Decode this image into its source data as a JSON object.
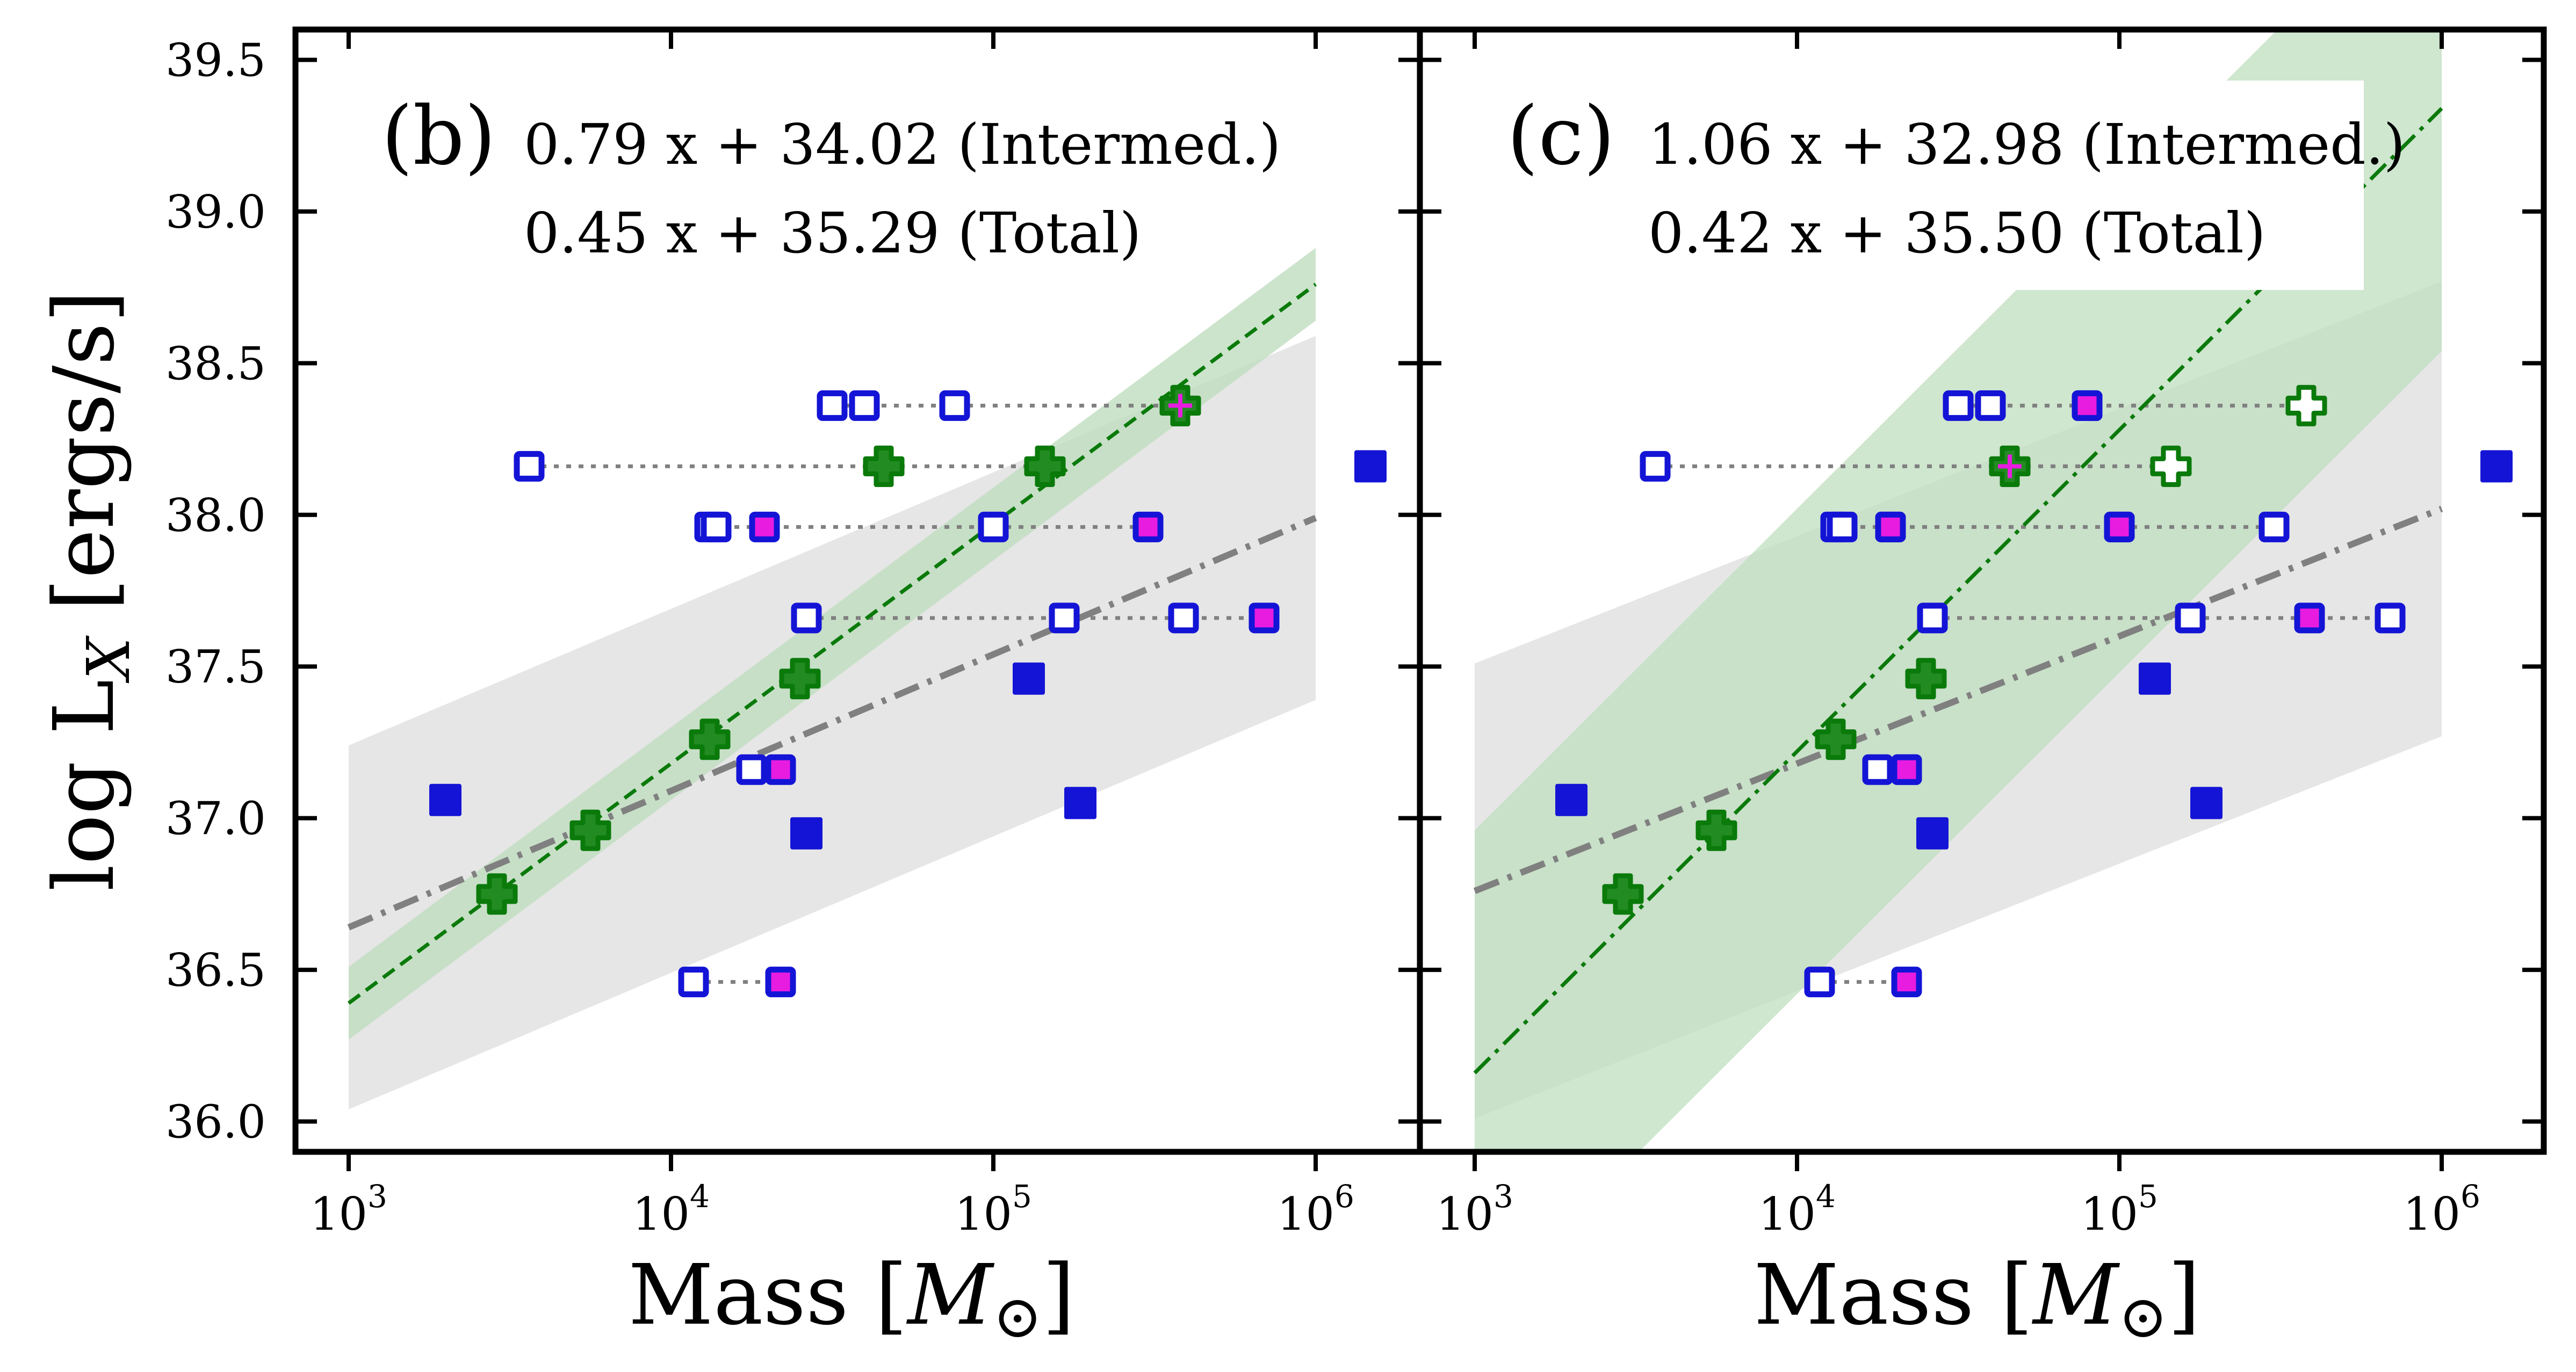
{
  "figure": {
    "ylabel": "log L",
    "ylabel_sub": "X",
    "ylabel_unit": " [ergs/s]",
    "xlabel": "Mass [",
    "xlabel_sym": "M",
    "xlabel_sub": "⊙",
    "xlabel_end": "]",
    "y_ticks": [
      "36.0",
      "36.5",
      "37.0",
      "37.5",
      "38.0",
      "38.5",
      "39.0",
      "39.5"
    ],
    "x_ticks": [
      {
        "base": "10",
        "exp": "3"
      },
      {
        "base": "10",
        "exp": "4"
      },
      {
        "base": "10",
        "exp": "5"
      },
      {
        "base": "10",
        "exp": "6"
      }
    ]
  },
  "colors": {
    "blue": "#1414d6",
    "green": "#0a7a0a",
    "magenta": "#e81ce0",
    "gray_line": "#808080",
    "green_band": "#bfddbf",
    "gray_band": "#e6e6e6"
  },
  "chart_data": [
    {
      "type": "scatter",
      "panel": "(b)",
      "x_scale": "log10",
      "x_label": "Mass [M_sun]",
      "y_label": "log L_X [ergs/s]",
      "xlim_log": [
        2.84,
        6.3
      ],
      "ylim": [
        35.9,
        39.6
      ],
      "fit_intermediate": {
        "label": "0.79 x + 34.02 (Intermed.)",
        "slope": 0.79,
        "intercept": 34.02,
        "style": "dashed",
        "band_halfwidth": 0.12
      },
      "fit_total": {
        "label": "0.45 x + 35.29 (Total)",
        "slope": 0.45,
        "intercept": 35.29,
        "style": "dashdot",
        "band_halfwidth": 0.6
      },
      "fit_xrange_log": [
        3,
        6
      ],
      "intermediate_points": [
        [
          3.46,
          36.75
        ],
        [
          3.75,
          36.96
        ],
        [
          4.12,
          37.26
        ],
        [
          4.4,
          37.46
        ],
        [
          4.66,
          38.16
        ],
        [
          5.16,
          38.16
        ],
        [
          5.58,
          38.36
        ]
      ],
      "blue_filled": [
        [
          3.3,
          37.06
        ],
        [
          4.42,
          36.95
        ],
        [
          5.11,
          37.46
        ],
        [
          5.27,
          37.05
        ],
        [
          6.17,
          38.16
        ]
      ],
      "rows": [
        {
          "y": 38.36,
          "open": [
            4.5,
            4.6,
            4.88
          ],
          "plus": [
            5.58
          ]
        },
        {
          "y": 38.16,
          "open": [
            3.56
          ],
          "plus": [
            4.66,
            5.16
          ]
        },
        {
          "y": 37.96,
          "open": [
            4.12,
            4.14,
            5.0
          ],
          "magenta": [
            4.29,
            5.48
          ]
        },
        {
          "y": 37.66,
          "open": [
            4.42,
            5.22,
            5.59
          ],
          "magenta": [
            5.84
          ]
        },
        {
          "y": 37.16,
          "open": [
            4.25
          ],
          "magenta": [
            4.34
          ]
        },
        {
          "y": 36.46,
          "open": [
            4.07
          ],
          "magenta": [
            4.34
          ]
        }
      ]
    },
    {
      "type": "scatter",
      "panel": "(c)",
      "x_scale": "log10",
      "x_label": "Mass [M_sun]",
      "y_label": "log L_X [ergs/s]",
      "xlim_log": [
        2.84,
        6.3
      ],
      "ylim": [
        35.9,
        39.6
      ],
      "fit_intermediate": {
        "label": "1.06 x + 32.98 (Intermed.)",
        "slope": 1.06,
        "intercept": 32.98,
        "style": "dashdot",
        "band_halfwidth": 0.8
      },
      "fit_total": {
        "label": "0.42 x + 35.50 (Total)",
        "slope": 0.42,
        "intercept": 35.5,
        "style": "dashdot",
        "band_halfwidth": 0.75
      },
      "fit_xrange_log": [
        3,
        6
      ],
      "intermediate_points": [
        [
          3.46,
          36.75
        ],
        [
          3.75,
          36.96
        ],
        [
          4.12,
          37.26
        ],
        [
          4.4,
          37.46
        ],
        [
          4.66,
          38.16
        ]
      ],
      "blue_filled": [
        [
          3.3,
          37.06
        ],
        [
          4.42,
          36.95
        ],
        [
          5.11,
          37.46
        ],
        [
          5.27,
          37.05
        ],
        [
          6.17,
          38.16
        ]
      ],
      "rows": [
        {
          "y": 38.36,
          "open": [
            4.5,
            4.6,
            4.9
          ],
          "plus": [
            5.58
          ],
          "magenta": [
            4.9
          ]
        },
        {
          "y": 38.16,
          "open": [
            3.56
          ],
          "plus": [
            4.66,
            5.16
          ]
        },
        {
          "y": 37.96,
          "open": [
            4.12,
            4.14,
            4.29,
            5.0,
            5.48
          ],
          "magenta": [
            4.29,
            5.0
          ]
        },
        {
          "y": 37.66,
          "open": [
            4.42,
            5.22,
            5.84
          ],
          "magenta": [
            5.59
          ]
        },
        {
          "y": 37.16,
          "open": [
            4.25,
            4.34
          ],
          "magenta": [
            4.34
          ]
        },
        {
          "y": 36.46,
          "open": [
            4.07
          ],
          "magenta": [
            4.34
          ]
        }
      ]
    }
  ]
}
